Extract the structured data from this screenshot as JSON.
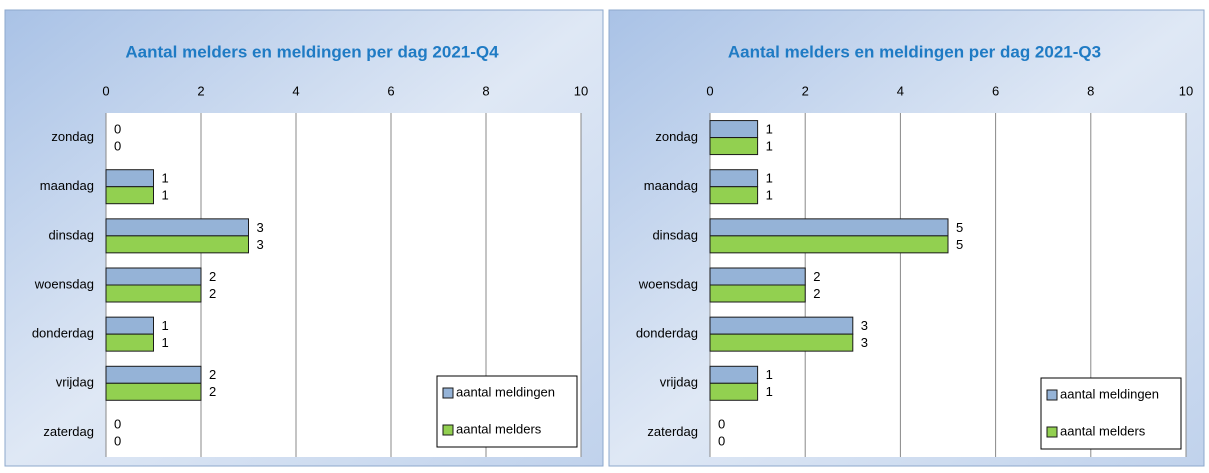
{
  "chart_data": [
    {
      "type": "bar",
      "orientation": "horizontal",
      "title": "Aantal melders  en meldingen per dag 2021-Q4",
      "categories": [
        "zondag",
        "maandag",
        "dinsdag",
        "woensdag",
        "donderdag",
        "vrijdag",
        "zaterdag"
      ],
      "series": [
        {
          "name": "aantal meldingen",
          "color": "#95b3d7",
          "values": [
            0,
            1,
            3,
            2,
            1,
            2,
            0
          ]
        },
        {
          "name": "aantal melders",
          "color": "#92d050",
          "values": [
            0,
            1,
            3,
            2,
            1,
            2,
            0
          ]
        }
      ],
      "xlim": [
        0,
        10
      ],
      "xticks": [
        0,
        2,
        4,
        6,
        8,
        10
      ],
      "grid": true,
      "legend": "lower right"
    },
    {
      "type": "bar",
      "orientation": "horizontal",
      "title": "Aantal melders  en meldingen per dag 2021-Q3",
      "categories": [
        "zondag",
        "maandag",
        "dinsdag",
        "woensdag",
        "donderdag",
        "vrijdag",
        "zaterdag"
      ],
      "series": [
        {
          "name": "aantal meldingen",
          "color": "#95b3d7",
          "values": [
            1,
            1,
            5,
            2,
            3,
            1,
            0
          ]
        },
        {
          "name": "aantal melders",
          "color": "#92d050",
          "values": [
            1,
            1,
            5,
            2,
            3,
            1,
            0
          ]
        }
      ],
      "xlim": [
        0,
        10
      ],
      "xticks": [
        0,
        2,
        4,
        6,
        8,
        10
      ],
      "grid": true,
      "legend": "lower right"
    }
  ]
}
